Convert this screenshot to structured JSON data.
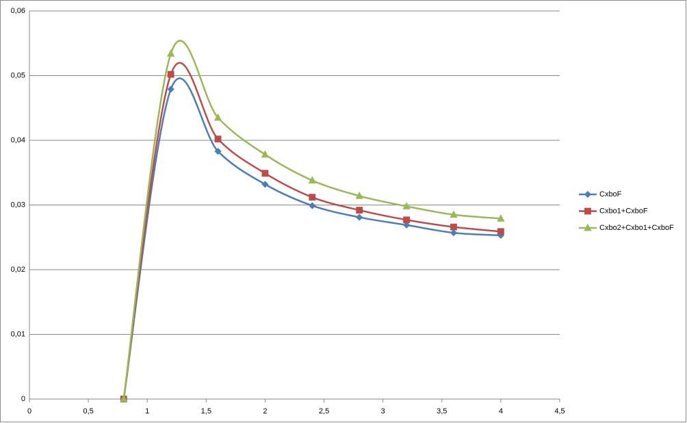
{
  "chart_data": {
    "type": "scatter-smooth",
    "x": [
      0.8,
      1.2,
      1.6,
      2,
      2.4,
      2.8,
      3.2,
      3.6,
      4
    ],
    "series": [
      {
        "name": "CxboF",
        "color": "#4a7ebb",
        "marker": "diamond",
        "values": [
          0,
          0.0479,
          0.0383,
          0.0332,
          0.0299,
          0.0281,
          0.0269,
          0.0257,
          0.0253
        ]
      },
      {
        "name": "Cxbo1+CxboF",
        "color": "#be4b48",
        "marker": "square",
        "values": [
          0,
          0.0502,
          0.0402,
          0.0349,
          0.0312,
          0.0292,
          0.0277,
          0.0266,
          0.0259
        ]
      },
      {
        "name": "Cxbo2+Cxbo1+CxboF",
        "color": "#98b954",
        "marker": "triangle",
        "values": [
          0,
          0.0534,
          0.0435,
          0.0378,
          0.0338,
          0.0314,
          0.0298,
          0.0285,
          0.0279
        ]
      }
    ],
    "xlim": [
      0,
      4.5
    ],
    "xticks": [
      0,
      {
        "value": 0.5,
        "label": "0,5"
      },
      1,
      {
        "value": 1.5,
        "label": "1,5"
      },
      2,
      {
        "value": 2.5,
        "label": "2,5"
      },
      3,
      {
        "value": 3.5,
        "label": "3,5"
      },
      4,
      {
        "value": 4.5,
        "label": "4,5"
      }
    ],
    "ylim": [
      0,
      0.06
    ],
    "yticks": [
      0,
      {
        "value": 0.01,
        "label": "0,01"
      },
      {
        "value": 0.02,
        "label": "0,02"
      },
      {
        "value": 0.03,
        "label": "0,03"
      },
      {
        "value": 0.04,
        "label": "0,04"
      },
      {
        "value": 0.05,
        "label": "0,05"
      },
      {
        "value": 0.06,
        "label": "0,06"
      }
    ],
    "grid": true,
    "legend": "right"
  }
}
